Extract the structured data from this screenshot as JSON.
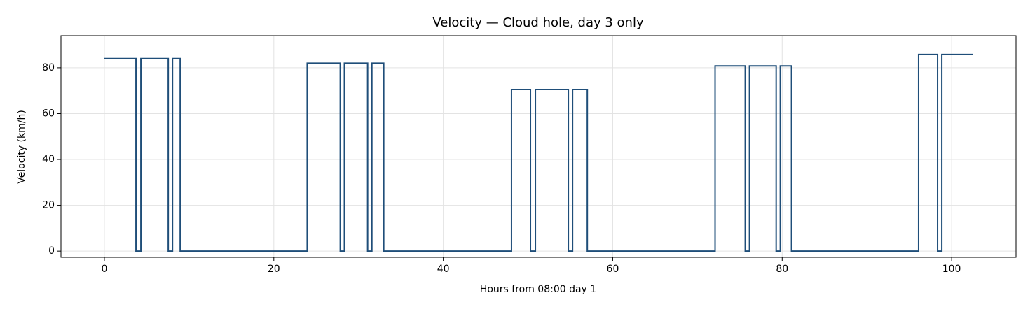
{
  "chart_data": {
    "type": "line",
    "title": "Velocity — Cloud hole, day 3 only",
    "x_label": "Hours from 08:00 day 1",
    "y_label": "Velocity (km/h)",
    "x": [
      0,
      3.73,
      3.73,
      4.31,
      4.31,
      7.54,
      7.54,
      8.04,
      8.04,
      8.95,
      8.95,
      23.94,
      23.94,
      27.84,
      27.84,
      28.33,
      28.33,
      31.07,
      31.07,
      31.57,
      31.57,
      32.97,
      32.97,
      48.05,
      48.05,
      50.29,
      50.29,
      50.87,
      50.87,
      54.76,
      54.76,
      55.26,
      55.26,
      57.0,
      57.0,
      72.08,
      72.08,
      75.64,
      75.64,
      76.14,
      76.14,
      79.29,
      79.29,
      79.78,
      79.78,
      81.1,
      81.1,
      96.1,
      96.1,
      98.34,
      98.34,
      98.84,
      98.84,
      102.5
    ],
    "values": [
      84,
      84,
      0,
      0,
      84,
      84,
      0,
      0,
      84,
      84,
      0,
      0,
      82,
      82,
      0,
      0,
      82,
      82,
      0,
      0,
      82,
      82,
      0,
      0,
      70.5,
      70.5,
      0,
      0,
      70.5,
      70.5,
      0,
      0,
      70.5,
      70.5,
      0,
      0,
      80.8,
      80.8,
      0,
      0,
      80.8,
      80.8,
      0,
      0,
      80.8,
      80.8,
      0,
      0,
      85.8,
      85.8,
      0,
      0,
      85.8,
      85.8
    ],
    "color": "#1f4e79",
    "xlim": [
      -5.125,
      107.6
    ],
    "xticks": [
      0,
      20,
      40,
      60,
      80,
      100
    ],
    "ylim": [
      -2.7,
      94.0
    ],
    "yticks": [
      0,
      20,
      40,
      60,
      80
    ],
    "grid": true
  }
}
